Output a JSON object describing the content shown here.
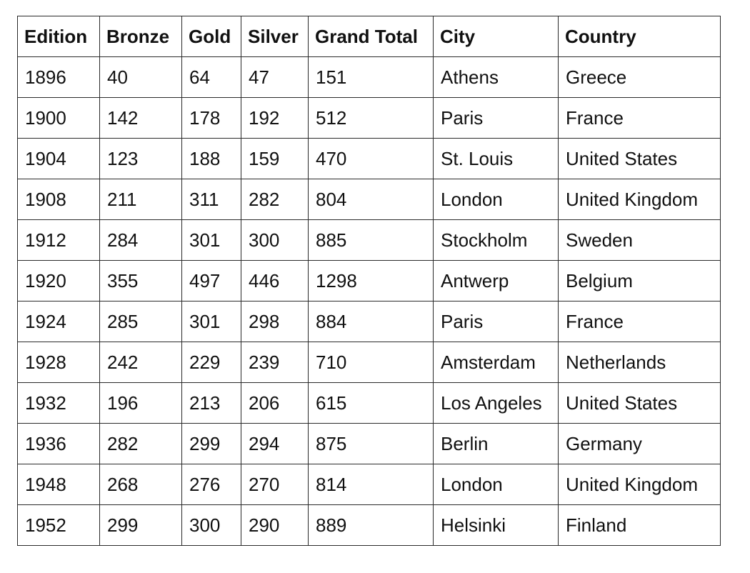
{
  "columns": [
    "Edition",
    "Bronze",
    "Gold",
    "Silver",
    "Grand Total",
    "City",
    "Country"
  ],
  "rows": [
    [
      "1896",
      "40",
      "64",
      "47",
      "151",
      "Athens",
      "Greece"
    ],
    [
      "1900",
      "142",
      "178",
      "192",
      "512",
      "Paris",
      "France"
    ],
    [
      "1904",
      "123",
      "188",
      "159",
      "470",
      "St. Louis",
      "United States"
    ],
    [
      "1908",
      "211",
      "311",
      "282",
      "804",
      "London",
      "United Kingdom"
    ],
    [
      "1912",
      "284",
      "301",
      "300",
      "885",
      "Stockholm",
      "Sweden"
    ],
    [
      "1920",
      "355",
      "497",
      "446",
      "1298",
      "Antwerp",
      "Belgium"
    ],
    [
      "1924",
      "285",
      "301",
      "298",
      "884",
      "Paris",
      "France"
    ],
    [
      "1928",
      "242",
      "229",
      "239",
      "710",
      "Amsterdam",
      "Netherlands"
    ],
    [
      "1932",
      "196",
      "213",
      "206",
      "615",
      "Los Angeles",
      "United States"
    ],
    [
      "1936",
      "282",
      "299",
      "294",
      "875",
      "Berlin",
      "Germany"
    ],
    [
      "1948",
      "268",
      "276",
      "270",
      "814",
      "London",
      "United Kingdom"
    ],
    [
      "1952",
      "299",
      "300",
      "290",
      "889",
      "Helsinki",
      "Finland"
    ]
  ],
  "colors": {
    "border": "#2a2a2a",
    "text": "#111111",
    "heading_clip": "#23305e"
  }
}
